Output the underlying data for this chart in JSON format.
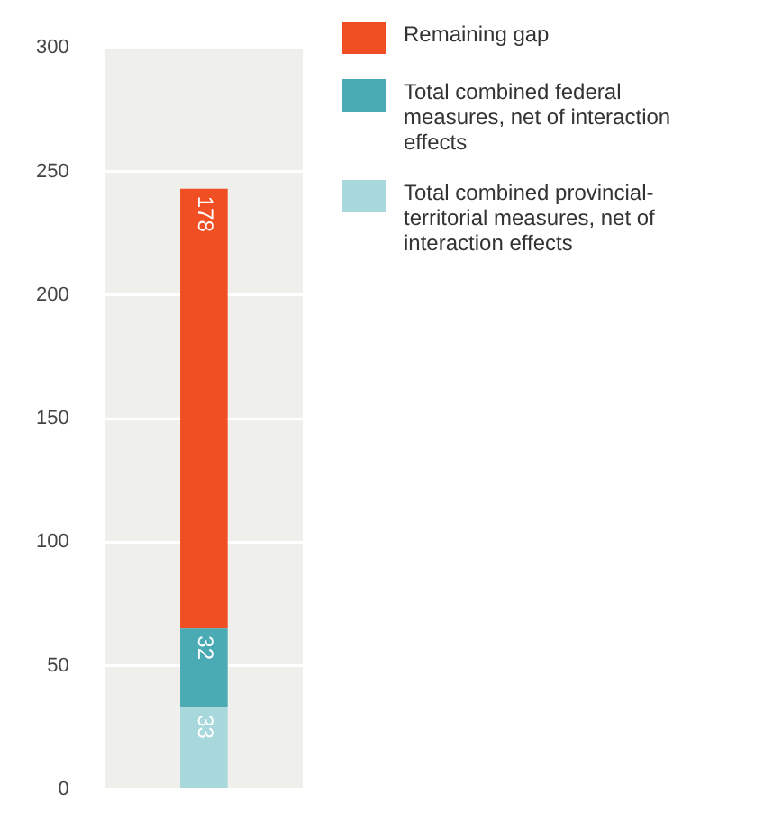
{
  "chart_data": {
    "type": "bar",
    "stacked": true,
    "categories": [
      null
    ],
    "series": [
      {
        "name": "Total combined provincial-territorial measures, net of interaction effects",
        "color": "#a8d8dc",
        "values": [
          33
        ]
      },
      {
        "name": "Total combined federal measures, net of interaction effects",
        "color": "#4aabb5",
        "values": [
          32
        ]
      },
      {
        "name": "Remaining gap",
        "color": "#f04e23",
        "values": [
          178
        ]
      }
    ],
    "ylim": [
      0,
      300
    ],
    "yticks": [
      0,
      50,
      100,
      150,
      200,
      250,
      300
    ],
    "grid": "y",
    "legend": "right",
    "data_labels": true
  }
}
